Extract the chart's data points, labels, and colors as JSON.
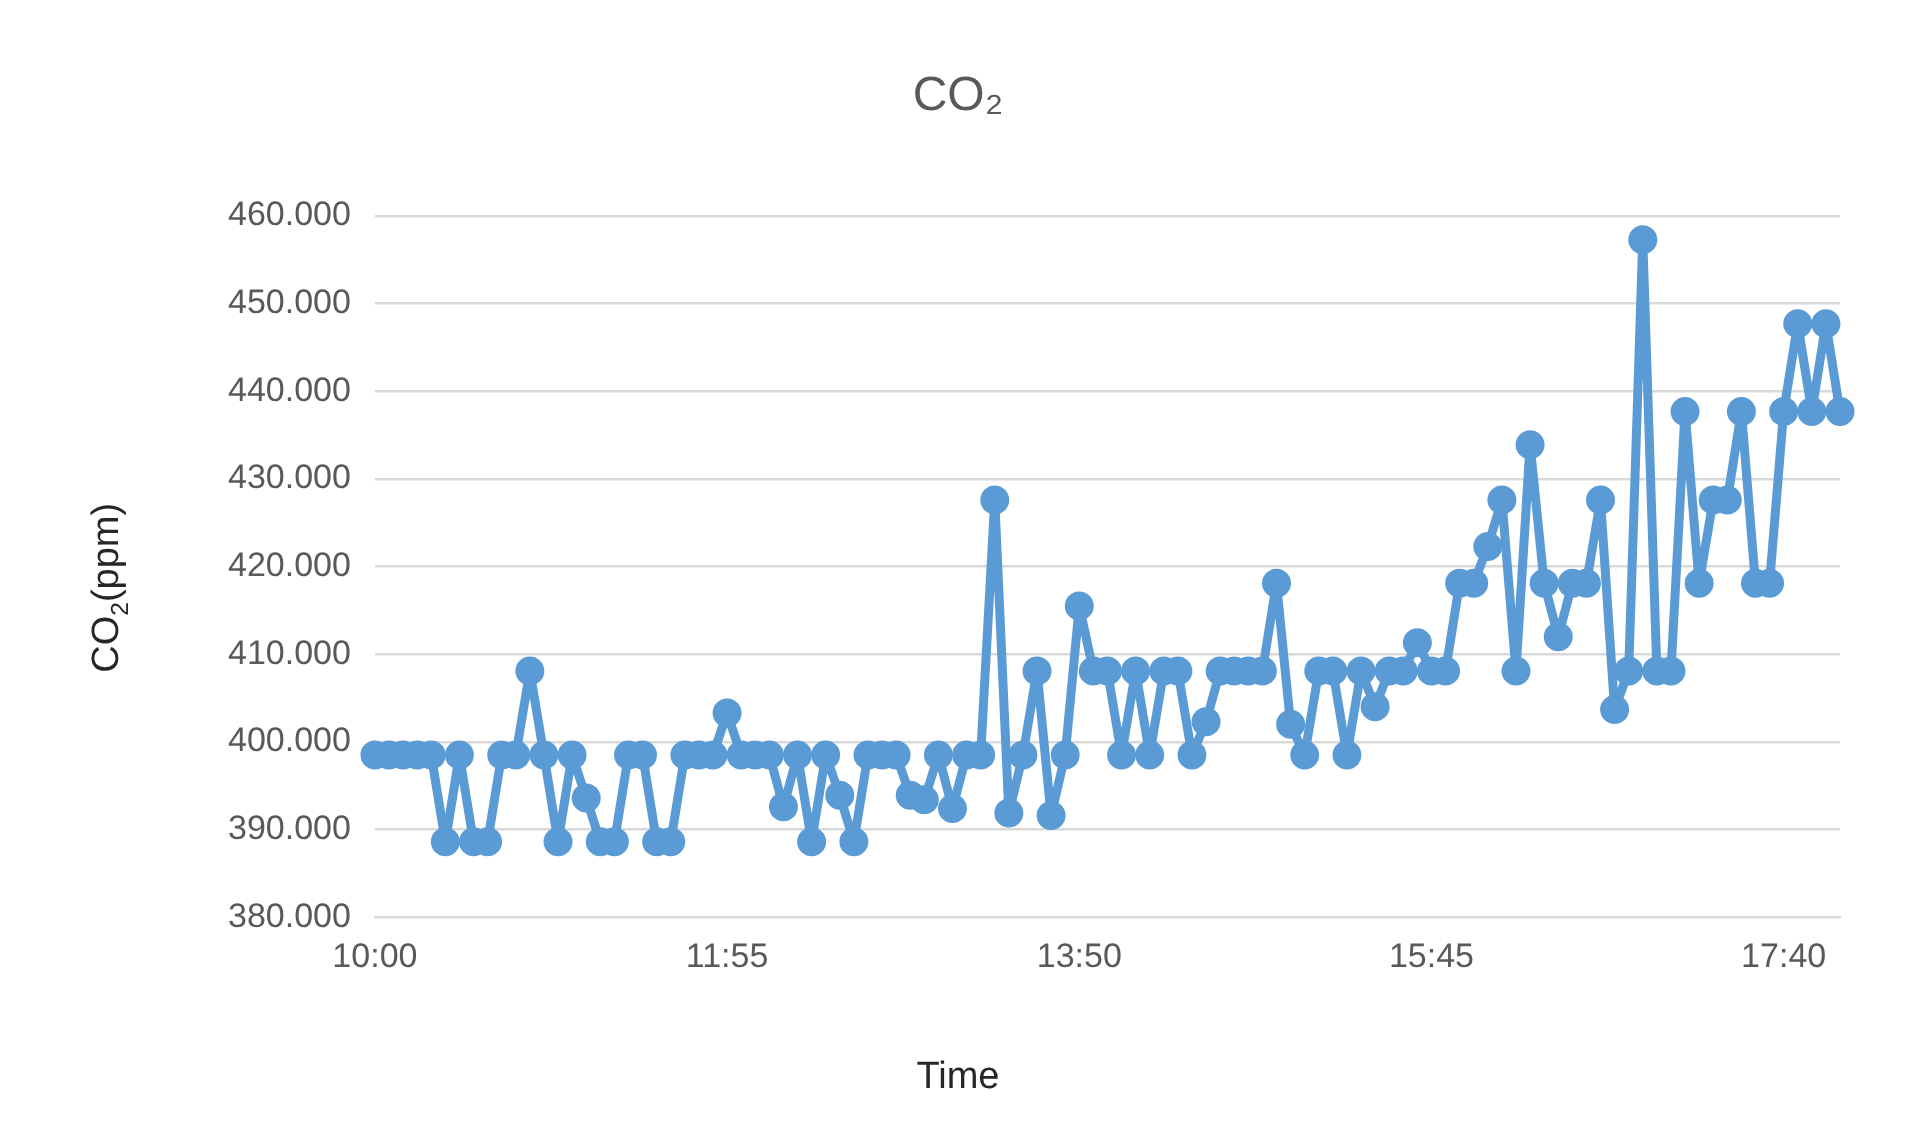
{
  "chart_data": {
    "type": "line",
    "title": "CO₂",
    "xlabel": "Time",
    "ylabel": "CO$_{2}$(ppm)",
    "categories": [
      "10:00",
      null,
      null,
      null,
      null,
      null,
      null,
      null,
      null,
      null,
      null,
      null,
      null,
      null,
      null,
      null,
      null,
      null,
      null,
      null,
      null,
      null,
      null,
      null,
      null,
      "11:55",
      null,
      null,
      null,
      null,
      null,
      null,
      null,
      null,
      null,
      null,
      null,
      null,
      null,
      null,
      null,
      null,
      null,
      null,
      null,
      null,
      null,
      null,
      null,
      null,
      "13:50",
      null,
      null,
      null,
      null,
      null,
      null,
      null,
      null,
      null,
      null,
      null,
      null,
      null,
      null,
      null,
      null,
      null,
      null,
      null,
      null,
      null,
      null,
      null,
      null,
      "15:45",
      null,
      null,
      null,
      null,
      null,
      null,
      null,
      null,
      null,
      null,
      null,
      null,
      null,
      null,
      null,
      null,
      null,
      null,
      null,
      null,
      null,
      null,
      null,
      null,
      "17:40",
      null,
      null,
      null,
      null
    ],
    "series": [
      {
        "color": "#5b9bd5",
        "values": [
          398.5,
          398.5,
          398.5,
          398.5,
          398.5,
          388.6,
          398.5,
          388.6,
          388.6,
          398.5,
          398.5,
          408.1,
          398.5,
          388.6,
          398.5,
          393.6,
          388.6,
          388.6,
          398.5,
          398.5,
          388.6,
          388.6,
          398.5,
          398.5,
          398.5,
          403.3,
          398.5,
          398.5,
          398.5,
          392.6,
          398.5,
          388.6,
          398.5,
          393.9,
          388.6,
          398.5,
          398.5,
          398.5,
          393.9,
          393.4,
          398.5,
          392.4,
          398.5,
          398.5,
          427.6,
          391.9,
          398.5,
          408.1,
          391.6,
          398.5,
          415.5,
          408.1,
          408.1,
          398.5,
          408.1,
          398.5,
          408.1,
          408.1,
          398.5,
          402.3,
          408.1,
          408.1,
          408.1,
          408.1,
          418.1,
          402.0,
          398.5,
          408.1,
          408.1,
          398.5,
          408.1,
          404.0,
          408.1,
          408.1,
          411.3,
          408.1,
          408.1,
          418.1,
          418.1,
          422.3,
          427.6,
          408.1,
          433.9,
          418.1,
          412.0,
          418.1,
          418.1,
          427.6,
          403.7,
          408.1,
          457.3,
          408.1,
          408.1,
          437.7,
          418.1,
          427.6,
          427.6,
          437.7,
          418.1,
          418.1,
          437.7,
          447.7,
          437.7,
          447.7,
          437.7
        ]
      }
    ],
    "ylim": [
      380,
      460
    ],
    "yticks": [
      {
        "value": 380,
        "label": "380.000"
      },
      {
        "value": 390,
        "label": "390.000"
      },
      {
        "value": 400,
        "label": "400.000"
      },
      {
        "value": 410,
        "label": "410.000"
      },
      {
        "value": 420,
        "label": "420.000"
      },
      {
        "value": 430,
        "label": "430.000"
      },
      {
        "value": 440,
        "label": "440.000"
      },
      {
        "value": 450,
        "label": "450.000"
      },
      {
        "value": 460,
        "label": "460.000"
      }
    ],
    "grid": "y",
    "legend": false,
    "marker": "circle",
    "line_style": "solid"
  }
}
